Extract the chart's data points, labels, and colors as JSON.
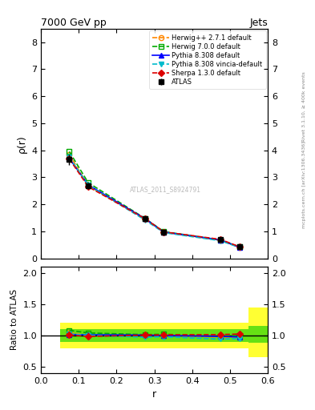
{
  "title_left": "7000 GeV pp",
  "title_right": "Jets",
  "ylabel_main": "ρ(r)",
  "ylabel_ratio": "Ratio to ATLAS",
  "xlabel": "r",
  "right_label_top": "Rivet 3.1.10, ≥ 400k events",
  "right_label_bottom": "mcplots.cern.ch [arXiv:1306.3436]",
  "watermark": "ATLAS_2011_S8924791",
  "ylim_main": [
    0,
    8.5
  ],
  "ylim_ratio": [
    0.4,
    2.1
  ],
  "yticks_main": [
    0,
    1,
    2,
    3,
    4,
    5,
    6,
    7,
    8
  ],
  "yticks_ratio": [
    0.5,
    1.0,
    1.5,
    2.0
  ],
  "xlim": [
    0.0,
    0.6
  ],
  "xticks": [
    0.0,
    0.1,
    0.2,
    0.3,
    0.4,
    0.5,
    0.6
  ],
  "atlas_x": [
    0.075,
    0.125,
    0.275,
    0.325,
    0.475,
    0.525
  ],
  "atlas_y": [
    3.65,
    2.69,
    1.46,
    0.97,
    0.69,
    0.42
  ],
  "atlas_yerr": [
    0.18,
    0.12,
    0.06,
    0.04,
    0.04,
    0.025
  ],
  "atlas_color": "#000000",
  "atlas_marker": "s",
  "herwig271_x": [
    0.075,
    0.125,
    0.275,
    0.325,
    0.475,
    0.525
  ],
  "herwig271_y": [
    3.85,
    2.68,
    1.47,
    0.97,
    0.67,
    0.41
  ],
  "herwig271_color": "#ff8800",
  "herwig271_marker": "o",
  "herwig271_label": "Herwig++ 2.7.1 default",
  "herwig700_x": [
    0.075,
    0.125,
    0.275,
    0.325,
    0.475,
    0.525
  ],
  "herwig700_y": [
    3.95,
    2.8,
    1.48,
    0.99,
    0.68,
    0.42
  ],
  "herwig700_color": "#00aa00",
  "herwig700_marker": "s",
  "herwig700_label": "Herwig 7.0.0 default",
  "pythia8308_x": [
    0.075,
    0.125,
    0.275,
    0.325,
    0.475,
    0.525
  ],
  "pythia8308_y": [
    3.7,
    2.72,
    1.47,
    0.97,
    0.68,
    0.41
  ],
  "pythia8308_color": "#0000ff",
  "pythia8308_marker": "^",
  "pythia8308_label": "Pythia 8.308 default",
  "pythia8308v_x": [
    0.075,
    0.125,
    0.275,
    0.325,
    0.475,
    0.525
  ],
  "pythia8308v_y": [
    3.75,
    2.7,
    1.42,
    0.95,
    0.65,
    0.4
  ],
  "pythia8308v_color": "#00bbcc",
  "pythia8308v_marker": "v",
  "pythia8308v_label": "Pythia 8.308 vincia-default",
  "sherpa130_x": [
    0.075,
    0.125,
    0.275,
    0.325,
    0.475,
    0.525
  ],
  "sherpa130_y": [
    3.68,
    2.65,
    1.47,
    0.98,
    0.7,
    0.43
  ],
  "sherpa130_color": "#dd0000",
  "sherpa130_marker": "D",
  "sherpa130_label": "Sherpa 1.3.0 default",
  "yellow_edges": [
    0.05,
    0.15,
    0.25,
    0.45,
    0.55,
    0.6
  ],
  "yellow_lo": [
    0.8,
    0.8,
    0.8,
    0.8,
    0.65
  ],
  "yellow_hi": [
    1.2,
    1.2,
    1.2,
    1.2,
    1.45
  ],
  "green_edges": [
    0.05,
    0.15,
    0.25,
    0.45,
    0.55,
    0.6
  ],
  "green_lo": [
    0.9,
    0.9,
    0.9,
    0.9,
    0.88
  ],
  "green_hi": [
    1.1,
    1.1,
    1.1,
    1.1,
    1.15
  ]
}
